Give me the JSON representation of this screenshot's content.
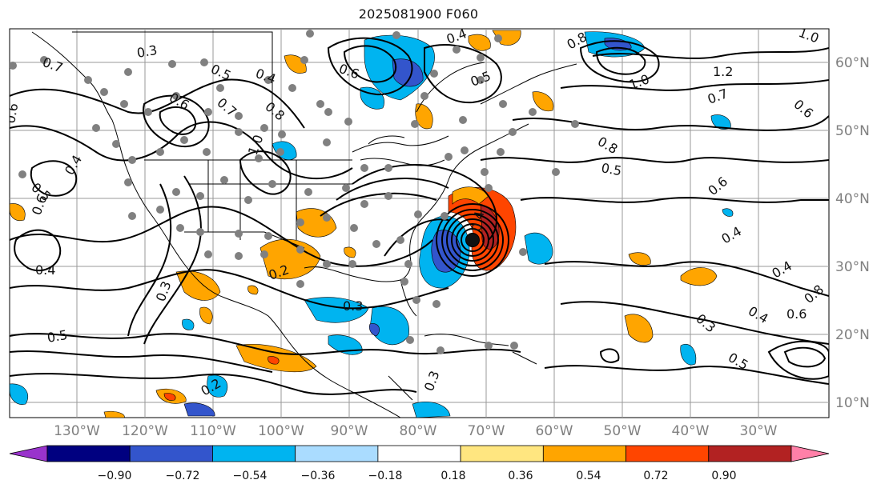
{
  "title": "2025081900 F060",
  "map": {
    "lon_labels": [
      "130°W",
      "120°W",
      "110°W",
      "100°W",
      "90°W",
      "80°W",
      "70°W",
      "60°W",
      "50°W",
      "40°W",
      "30°W"
    ],
    "lat_labels": [
      "60°N",
      "50°N",
      "40°N",
      "30°N",
      "20°N",
      "10°N"
    ],
    "contour_labels": [
      "0.7",
      "0.3",
      "0.5",
      "0.4",
      "0.6",
      "0.6",
      "0.8",
      "0.7",
      "1.0",
      "0.4",
      "0.5",
      "0.4",
      "0.6",
      "0.5",
      "0.6",
      "0.5",
      "0.4",
      "0.2",
      "0.3",
      "0.3",
      "0.2",
      "0.3",
      "0.8",
      "1.0",
      "1.2",
      "0.7",
      "0.6",
      "0.8",
      "0.5",
      "0.6",
      "0.4",
      "0.4",
      "0.3",
      "0.4",
      "0.5",
      "0.6",
      "0.8",
      "0.4",
      "1.0"
    ]
  },
  "colorbar": {
    "ticks": [
      "−0.90",
      "−0.72",
      "−0.54",
      "−0.36",
      "−0.18",
      "0.18",
      "0.36",
      "0.54",
      "0.72",
      "0.90"
    ],
    "colors": [
      "#9933cc",
      "#000080",
      "#3355cc",
      "#00b4f0",
      "#aadcff",
      "#ffffff",
      "#ffe680",
      "#ffa500",
      "#ff4500",
      "#b22222",
      "#ff80a8"
    ]
  }
}
